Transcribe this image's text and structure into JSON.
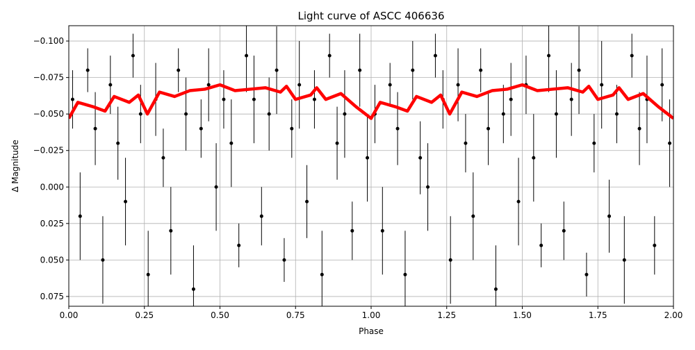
{
  "chart_data": {
    "type": "scatter",
    "title": "Light curve of ASCC 406636",
    "xlabel": "Phase",
    "ylabel": "Δ Magnitude",
    "xlim": [
      0,
      2
    ],
    "ylim": [
      -0.1105,
      0.0817
    ],
    "y_inverted": true,
    "grid": true,
    "xticks": [
      {
        "value": 0,
        "label": "0.00"
      },
      {
        "value": 0.25,
        "label": "0.25"
      },
      {
        "value": 0.5,
        "label": "0.50"
      },
      {
        "value": 0.75,
        "label": "0.75"
      },
      {
        "value": 1,
        "label": "1.00"
      },
      {
        "value": 1.25,
        "label": "1.25"
      },
      {
        "value": 1.5,
        "label": "1.50"
      },
      {
        "value": 1.75,
        "label": "1.75"
      },
      {
        "value": 2,
        "label": "2.00"
      }
    ],
    "yticks": [
      {
        "value": -0.1,
        "label": "−0.100"
      },
      {
        "value": -0.075,
        "label": "−0.075"
      },
      {
        "value": -0.05,
        "label": "−0.050"
      },
      {
        "value": -0.025,
        "label": "−0.025"
      },
      {
        "value": 0,
        "label": "0.000"
      },
      {
        "value": 0.025,
        "label": "0.025"
      },
      {
        "value": 0.05,
        "label": "0.050"
      },
      {
        "value": 0.075,
        "label": "0.075"
      }
    ],
    "series": [
      {
        "color": "#000000",
        "x": [
          0.0125,
          0.0375,
          0.0625,
          0.0875,
          0.1125,
          0.1375,
          0.1625,
          0.1875,
          0.2125,
          0.2375,
          0.2625,
          0.2875,
          0.3125,
          0.3375,
          0.3625,
          0.3875,
          0.4125,
          0.4375,
          0.4625,
          0.4875,
          0.5125,
          0.5375,
          0.5625,
          0.5875,
          0.6125,
          0.6375,
          0.6625,
          0.6875,
          0.7125,
          0.7375,
          0.7625,
          0.7875,
          0.8125,
          0.8375,
          0.8625,
          0.8875,
          0.9125,
          0.9375,
          0.9625,
          0.9875,
          1.0125,
          1.0375,
          1.0625,
          1.0875,
          1.1125,
          1.1375,
          1.1625,
          1.1875,
          1.2125,
          1.2375,
          1.2625,
          1.2875,
          1.3125,
          1.3375,
          1.3625,
          1.3875,
          1.4125,
          1.4375,
          1.4625,
          1.4875,
          1.5125,
          1.5375,
          1.5625,
          1.5875,
          1.6125,
          1.6375,
          1.6625,
          1.6875,
          1.7125,
          1.7375,
          1.7625,
          1.7875,
          1.8125,
          1.8375,
          1.8625,
          1.8875,
          1.9125,
          1.9375,
          1.9625,
          1.9875
        ],
        "values": [
          -0.06,
          0.02,
          -0.08,
          -0.04,
          0.05,
          -0.07,
          -0.03,
          0.01,
          -0.09,
          -0.05,
          0.06,
          -0.06,
          -0.02,
          0.03,
          -0.08,
          -0.05,
          0.07,
          -0.04,
          -0.07,
          0.0,
          -0.06,
          -0.03,
          0.04,
          -0.09,
          -0.06,
          0.02,
          -0.05,
          -0.08,
          0.05,
          -0.04,
          -0.07,
          0.01,
          -0.06,
          0.06,
          -0.09,
          -0.03,
          -0.05,
          0.03,
          -0.08,
          -0.02,
          -0.05,
          0.03,
          -0.07,
          -0.04,
          0.06,
          -0.08,
          -0.02,
          0.0,
          -0.09,
          -0.06,
          0.05,
          -0.07,
          -0.03,
          0.02,
          -0.08,
          -0.04,
          0.07,
          -0.05,
          -0.06,
          0.01,
          -0.07,
          -0.02,
          0.04,
          -0.09,
          -0.05,
          0.03,
          -0.06,
          -0.08,
          0.06,
          -0.03,
          -0.07,
          0.02,
          -0.05,
          0.05,
          -0.09,
          -0.04,
          -0.06,
          0.04,
          -0.07,
          -0.03
        ],
        "errors": [
          0.02,
          0.03,
          0.015,
          0.025,
          0.03,
          0.02,
          0.025,
          0.03,
          0.015,
          0.02,
          0.03,
          0.025,
          0.02,
          0.03,
          0.015,
          0.025,
          0.03,
          0.02,
          0.025,
          0.03,
          0.02,
          0.03,
          0.015,
          0.025,
          0.03,
          0.02,
          0.025,
          0.03,
          0.015,
          0.02,
          0.03,
          0.025,
          0.02,
          0.03,
          0.015,
          0.025,
          0.03,
          0.02,
          0.025,
          0.03,
          0.02,
          0.03,
          0.015,
          0.025,
          0.03,
          0.02,
          0.025,
          0.03,
          0.015,
          0.02,
          0.03,
          0.025,
          0.02,
          0.03,
          0.015,
          0.025,
          0.03,
          0.02,
          0.025,
          0.03,
          0.02,
          0.03,
          0.015,
          0.025,
          0.03,
          0.02,
          0.025,
          0.03,
          0.015,
          0.02,
          0.03,
          0.025,
          0.02,
          0.03,
          0.015,
          0.025,
          0.03,
          0.02,
          0.025,
          0.03
        ]
      },
      {
        "color": "#ff0000",
        "style": "line",
        "x": [
          0,
          0.03,
          0.08,
          0.12,
          0.15,
          0.2,
          0.23,
          0.26,
          0.3,
          0.35,
          0.4,
          0.45,
          0.5,
          0.55,
          0.6,
          0.65,
          0.7,
          0.72,
          0.75,
          0.8,
          0.82,
          0.85,
          0.9,
          0.95,
          1.0,
          1.03,
          1.08,
          1.12,
          1.15,
          1.2,
          1.23,
          1.26,
          1.3,
          1.35,
          1.4,
          1.45,
          1.5,
          1.55,
          1.6,
          1.65,
          1.7,
          1.72,
          1.75,
          1.8,
          1.82,
          1.85,
          1.9,
          1.95,
          2.0
        ],
        "values": [
          -0.047,
          -0.058,
          -0.055,
          -0.052,
          -0.062,
          -0.058,
          -0.063,
          -0.05,
          -0.065,
          -0.062,
          -0.066,
          -0.067,
          -0.07,
          -0.066,
          -0.067,
          -0.068,
          -0.065,
          -0.069,
          -0.06,
          -0.063,
          -0.068,
          -0.06,
          -0.064,
          -0.055,
          -0.047,
          -0.058,
          -0.055,
          -0.052,
          -0.062,
          -0.058,
          -0.063,
          -0.05,
          -0.065,
          -0.062,
          -0.066,
          -0.067,
          -0.07,
          -0.066,
          -0.067,
          -0.068,
          -0.065,
          -0.069,
          -0.06,
          -0.063,
          -0.068,
          -0.06,
          -0.064,
          -0.055,
          -0.047
        ]
      }
    ]
  }
}
